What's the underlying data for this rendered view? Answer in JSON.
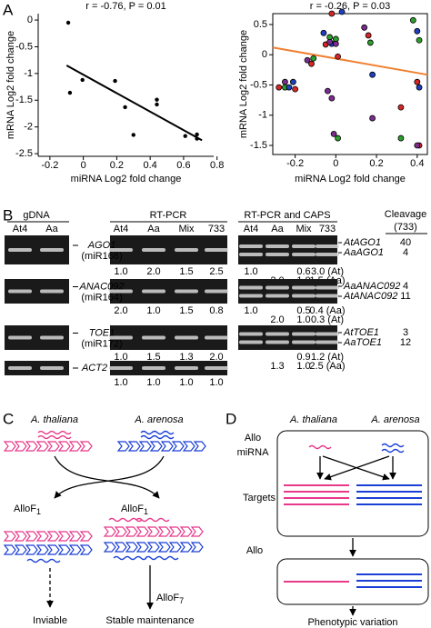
{
  "panel_labels": [
    "A",
    "B",
    "C",
    "D"
  ],
  "chart_data": [
    {
      "type": "scatter",
      "title": "r = -0.76, P = 0.01",
      "x_label": "miRNA Log2 fold change",
      "y_label": "mRNA Log2 fold change",
      "color": "#000000",
      "x": [
        -0.09,
        -0.08,
        -0.005,
        0.19,
        0.25,
        0.3,
        0.44,
        0.44,
        0.61,
        0.68,
        0.68
      ],
      "y": [
        -0.05,
        -1.36,
        -1.12,
        -1.14,
        -1.63,
        -2.15,
        -1.49,
        -1.58,
        -2.17,
        -2.14,
        -2.22
      ],
      "trend": {
        "color": "#000000",
        "x": [
          -0.1,
          0.71
        ],
        "y": [
          -0.85,
          -2.25
        ]
      },
      "xlim": [
        -0.27,
        0.78
      ],
      "ylim": [
        -2.55,
        0.12
      ],
      "xticks": [
        -0.2,
        0,
        0.2,
        0.4,
        0.6,
        0.8
      ],
      "yticks": [
        0,
        -0.5,
        -1,
        -1.5,
        -2,
        -2.5
      ],
      "frame": false
    },
    {
      "type": "scatter",
      "title": "r = -0.26, P = 0.03",
      "x_label": "miRNA Log2 fold change",
      "y_label": "mRNA Log2 fold change",
      "groups": [
        {
          "color": "#d62728",
          "x": [
            -0.28,
            -0.2,
            -0.12,
            -0.05,
            -0.02,
            0.01,
            0.16,
            0.32,
            0.4,
            0.41
          ],
          "y": [
            -0.54,
            -0.57,
            -0.15,
            0.17,
            0.68,
            -0.03,
            0.32,
            -0.87,
            -0.45,
            -1.5
          ]
        },
        {
          "color": "#2ca02c",
          "x": [
            -0.25,
            -0.11,
            -0.03,
            0,
            0.01,
            0.17,
            0.38,
            0.41,
            0.32
          ],
          "y": [
            -0.54,
            -0.06,
            0.29,
            0.26,
            -1.38,
            0.2,
            0.57,
            0.24,
            -1.38
          ]
        },
        {
          "color": "#1f3fbf",
          "x": [
            -0.23,
            -0.21,
            -0.06,
            -0.02,
            0.03,
            0.18,
            0.4,
            0.41
          ],
          "y": [
            -0.54,
            -0.45,
            0.36,
            0.18,
            0.71,
            -0.33,
            0.39,
            -0.54
          ]
        },
        {
          "color": "#7b2d8e",
          "x": [
            -0.25,
            -0.14,
            -0.03,
            0,
            -0.04,
            -0.02,
            -0.01,
            0.14,
            0.18,
            0.4
          ],
          "y": [
            -0.45,
            -0.09,
            0.21,
            0.18,
            -0.6,
            -0.72,
            -1.31,
            0.45,
            -1.05,
            -1.5
          ]
        }
      ],
      "trend": {
        "color": "#f08030",
        "x": [
          -0.31,
          0.45
        ],
        "y": [
          0.12,
          -0.33
        ]
      },
      "xlim": [
        -0.31,
        0.45
      ],
      "ylim": [
        -1.65,
        0.68
      ],
      "xticks": [
        -0.2,
        0,
        0.2,
        0.4
      ],
      "yticks": [
        0.5,
        0,
        -0.5,
        -1,
        -1.5
      ],
      "frame": true
    }
  ],
  "gel": {
    "gdna_header": "gDNA",
    "rtpcr_header": "RT-PCR",
    "caps_header": "RT-PCR and CAPS",
    "cleavage_header": "Cleavage",
    "cleavage_sub": "(733)",
    "gdna_lanes": [
      "At4",
      "Aa"
    ],
    "rtpcr_lanes": [
      "At4",
      "Aa",
      "Mix",
      "733"
    ],
    "caps_lanes": [
      "At4",
      "Aa",
      "Mix",
      "733"
    ],
    "rows": [
      {
        "gene": "AGO1",
        "mirna": "(miR168)",
        "rtpcr_quant": [
          "1.0",
          "2.0",
          "1.5",
          "2.5"
        ],
        "caps_quant": [
          {
            "At4": "1.0",
            "Mix": "0.6",
            "733": "3.0 (At)"
          },
          {
            "Aa": "2.0",
            "Mix": "1.0",
            "733": "1.5 (Aa)"
          }
        ],
        "alleles": [
          "AtAGO1",
          "AaAGO1"
        ],
        "cleavage": [
          40,
          4
        ]
      },
      {
        "gene": "ANAC092",
        "mirna": "(miR164)",
        "rtpcr_quant": [
          "2.0",
          "1.0",
          "1.5",
          "0.8"
        ],
        "caps_quant": [
          {
            "At4": "1.0",
            "Mix": "0.5",
            "733": "0.4 (Aa)"
          },
          {
            "Aa": "2.0",
            "Mix": "1.0",
            "733": "0.3 (At)"
          }
        ],
        "alleles": [
          "AaANAC092",
          "AtANAC092"
        ],
        "cleavage": [
          4,
          11
        ]
      },
      {
        "gene": "TOE1",
        "mirna": "(miR172)",
        "rtpcr_quant": [
          "1.0",
          "1.5",
          "1.3",
          "2.0"
        ],
        "caps_quant": [
          {
            "Mix": "0.9",
            "733": "1.2 (At)"
          },
          {
            "Aa": "1.3",
            "Mix": "1.0",
            "733": "2.5 (Aa)"
          }
        ],
        "alleles": [
          "AtTOE1",
          "AaTOE1"
        ],
        "cleavage": [
          3,
          12
        ]
      }
    ],
    "control": {
      "gene": "ACT2",
      "rtpcr_quant": [
        "1.0",
        "1.0",
        "1.0",
        "1.0"
      ]
    }
  },
  "diagram_c": {
    "species": [
      "A. thaliana",
      "A. arenosa"
    ],
    "offspring": [
      {
        "label": "AlloF",
        "sub": "1",
        "fate": "Inviable"
      },
      {
        "label": "AlloF",
        "sub": "1",
        "fate": "Stable maintenance",
        "next": "AlloF",
        "next_sub": "7"
      }
    ]
  },
  "diagram_d": {
    "allo_label": "Allo",
    "mirna_label": "miRNA",
    "species": [
      "A. thaliana",
      "A. arenosa"
    ],
    "targets_label": "Targets",
    "allo_label_2": "Allo",
    "outcome": "Phenotypic variation"
  }
}
